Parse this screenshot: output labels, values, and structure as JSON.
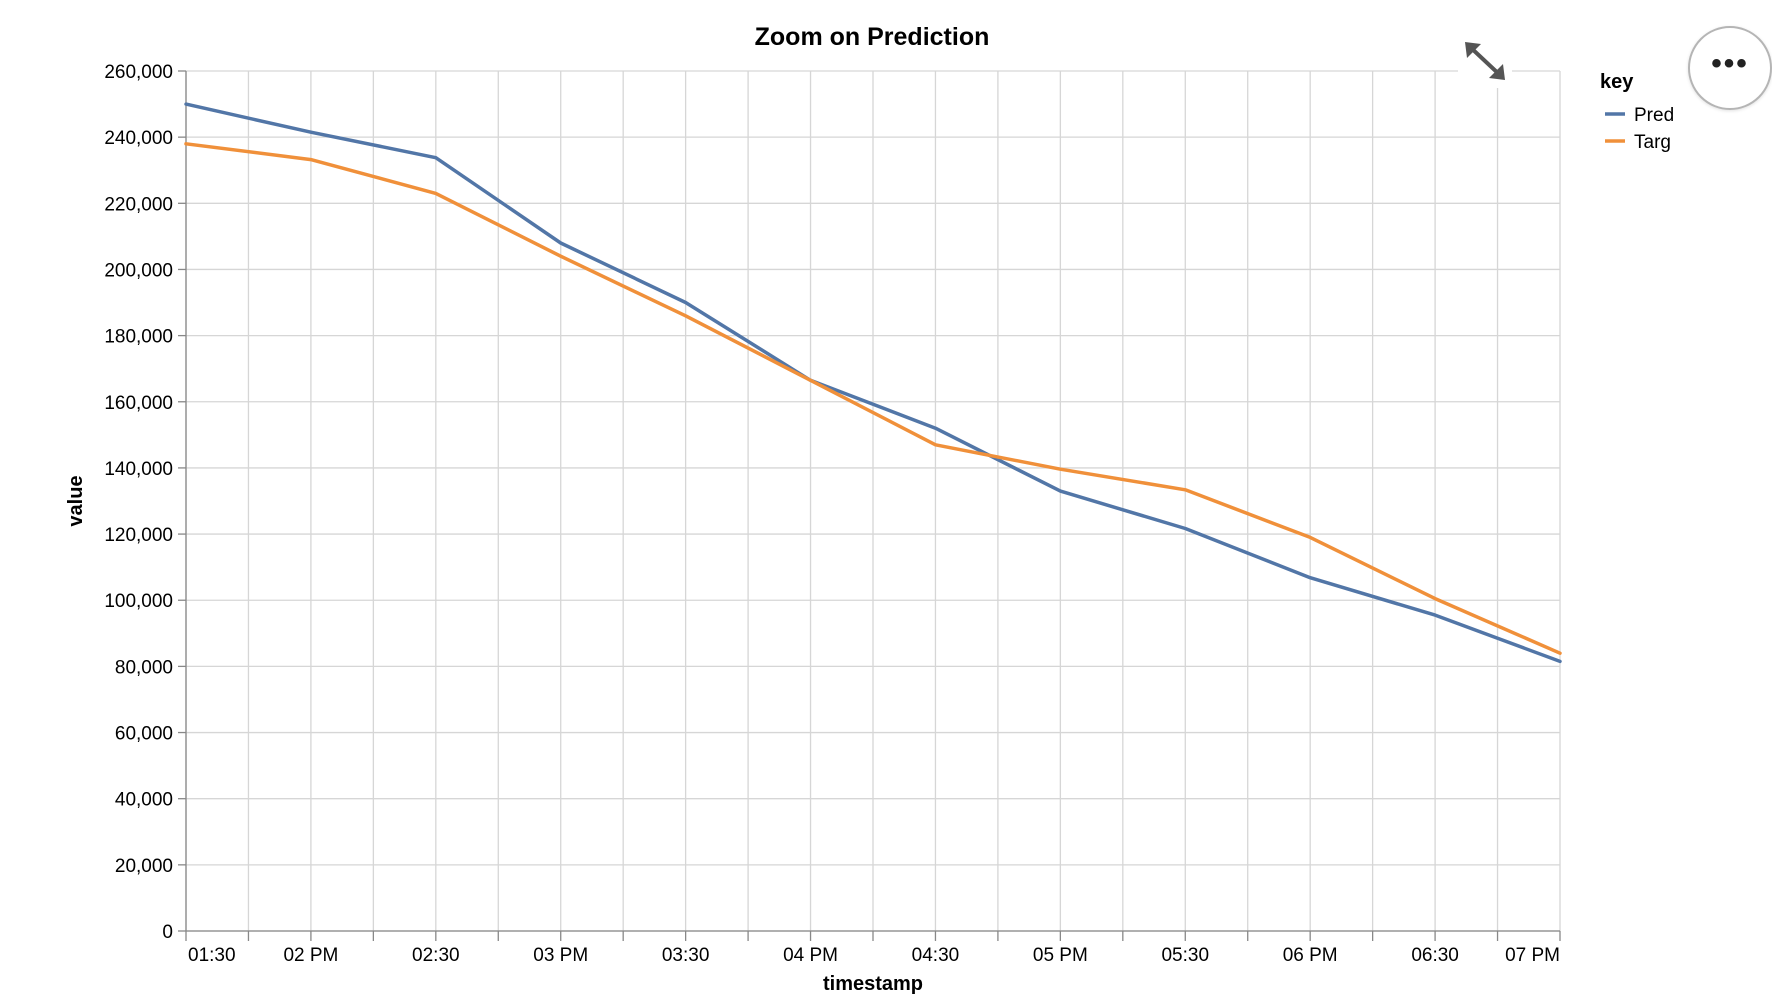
{
  "icons": {
    "expand": "expand-arrows-icon",
    "menu": "more-options-icon"
  },
  "menu_button": {
    "label": "•••"
  },
  "chart_data": {
    "type": "line",
    "title": "Zoom on Prediction",
    "xlabel": "timestamp",
    "ylabel": "value",
    "ylim": [
      0,
      260000
    ],
    "y_ticks": [
      0,
      20000,
      40000,
      60000,
      80000,
      100000,
      120000,
      140000,
      160000,
      180000,
      200000,
      220000,
      240000,
      260000
    ],
    "y_tick_labels": [
      "0",
      "20,000",
      "40,000",
      "60,000",
      "80,000",
      "100,000",
      "120,000",
      "140,000",
      "160,000",
      "180,000",
      "200,000",
      "220,000",
      "240,000",
      "260,000"
    ],
    "x_range": [
      "13:30",
      "19:00"
    ],
    "x_ticks": [
      "13:30",
      "14:00",
      "14:30",
      "15:00",
      "15:30",
      "16:00",
      "16:30",
      "17:00",
      "17:30",
      "18:00",
      "18:30",
      "19:00"
    ],
    "x_tick_labels": [
      "01:30",
      "02 PM",
      "02:30",
      "03 PM",
      "03:30",
      "04 PM",
      "04:30",
      "05 PM",
      "05:30",
      "06 PM",
      "06:30",
      "07 PM"
    ],
    "x_minor_ticks": [
      "13:45",
      "14:15",
      "14:45",
      "15:15",
      "15:45",
      "16:15",
      "16:45",
      "17:15",
      "17:45",
      "18:15",
      "18:45"
    ],
    "x": [
      "13:30",
      "14:00",
      "14:30",
      "15:00",
      "15:30",
      "16:00",
      "16:30",
      "17:00",
      "17:30",
      "18:00",
      "18:30",
      "19:00"
    ],
    "legend_title": "key",
    "legend_position": "right",
    "grid": true,
    "series": [
      {
        "name": "Pred",
        "color": "#5276a7",
        "values": [
          250000,
          241500,
          233800,
          208000,
          190000,
          166500,
          152000,
          133000,
          121700,
          106800,
          95500,
          81500
        ]
      },
      {
        "name": "Targ",
        "color": "#f0903a",
        "values": [
          238000,
          233200,
          223000,
          204000,
          186000,
          166500,
          147000,
          139600,
          133400,
          119000,
          100500,
          84000
        ]
      }
    ]
  }
}
